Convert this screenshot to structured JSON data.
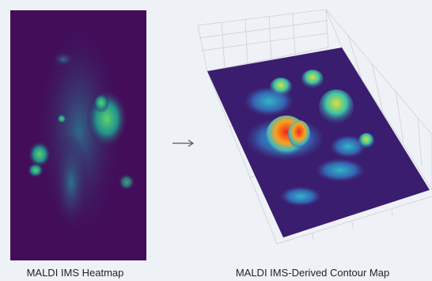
{
  "figure": {
    "left_caption": "MALDI IMS Heatmap",
    "right_caption": "MALDI IMS-Derived Contour Map"
  }
}
